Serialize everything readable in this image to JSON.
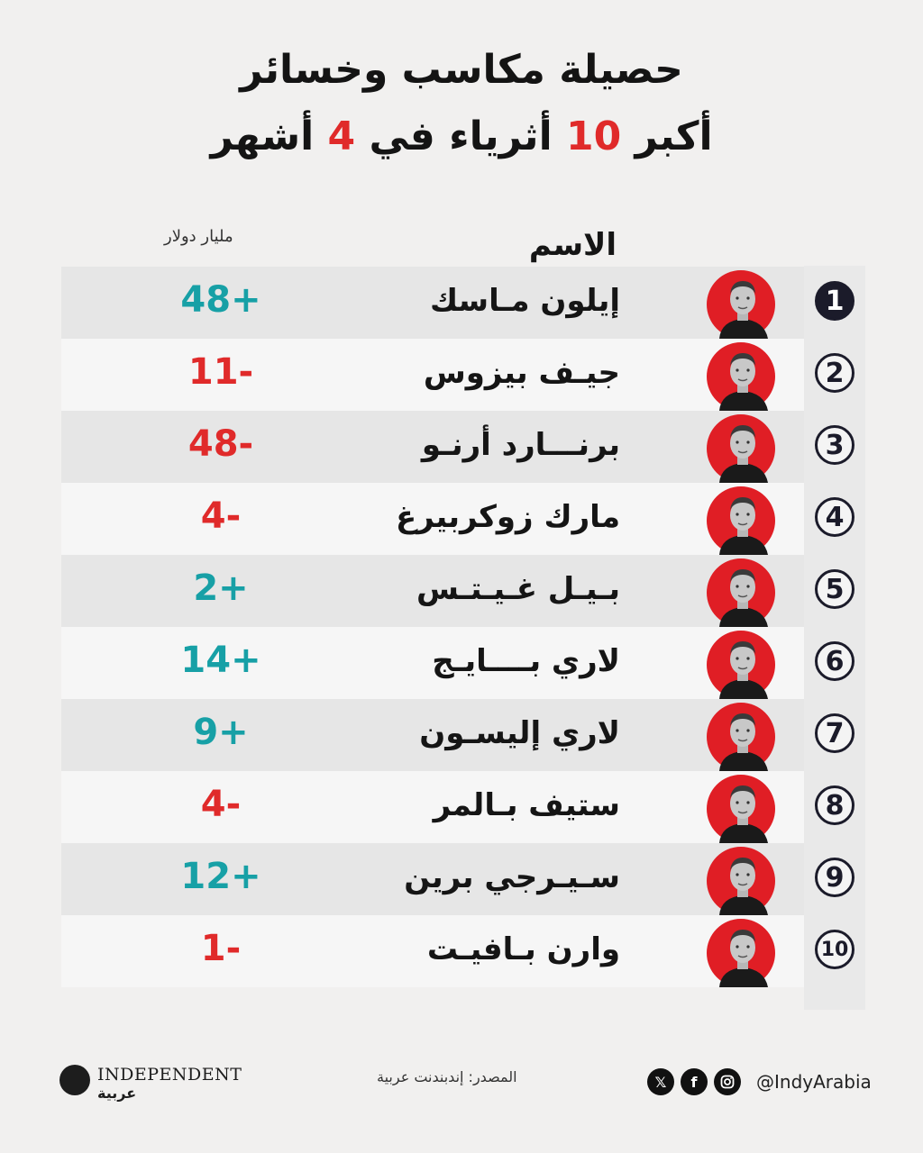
{
  "title": {
    "line1": "حصيلة مكاسب وخسائر",
    "line2_pre": "أكبر",
    "line2_num1": "10",
    "line2_mid": "أثرياء في",
    "line2_num2": "4",
    "line2_post": "أشهر"
  },
  "headers": {
    "name": "الاسم",
    "value": "مليار دولار"
  },
  "rows": [
    {
      "rank": "1",
      "name": "إيلون مـاسك",
      "value": "48+",
      "sign": "pos"
    },
    {
      "rank": "2",
      "name": "جيـف بيزوس",
      "value": "11-",
      "sign": "neg"
    },
    {
      "rank": "3",
      "name": "برنـــارد أرنـو",
      "value": "48-",
      "sign": "neg"
    },
    {
      "rank": "4",
      "name": "مارك زوكربيرغ",
      "value": "4-",
      "sign": "neg"
    },
    {
      "rank": "5",
      "name": "بـيـل غـيـتـس",
      "value": "2+",
      "sign": "pos"
    },
    {
      "rank": "6",
      "name": "لاري بــــايـج",
      "value": "14+",
      "sign": "pos"
    },
    {
      "rank": "7",
      "name": "لاري إليسـون",
      "value": "9+",
      "sign": "pos"
    },
    {
      "rank": "8",
      "name": "ستيف بـالمر",
      "value": "4-",
      "sign": "neg"
    },
    {
      "rank": "9",
      "name": "سـيـرجي برين",
      "value": "12+",
      "sign": "pos"
    },
    {
      "rank": "10",
      "name": "وارن بـافيـت",
      "value": "1-",
      "sign": "neg"
    }
  ],
  "colors": {
    "positive": "#17a0a6",
    "negative": "#e02a2a",
    "avatar_bg": "#e01e25"
  },
  "footer": {
    "logo_text": "INDEPENDENT",
    "logo_arabic": "عربية",
    "source": "المصدر: إندبندنت عربية",
    "handle": "@IndyArabia",
    "icons": [
      "x-icon",
      "facebook-icon",
      "instagram-icon"
    ]
  }
}
